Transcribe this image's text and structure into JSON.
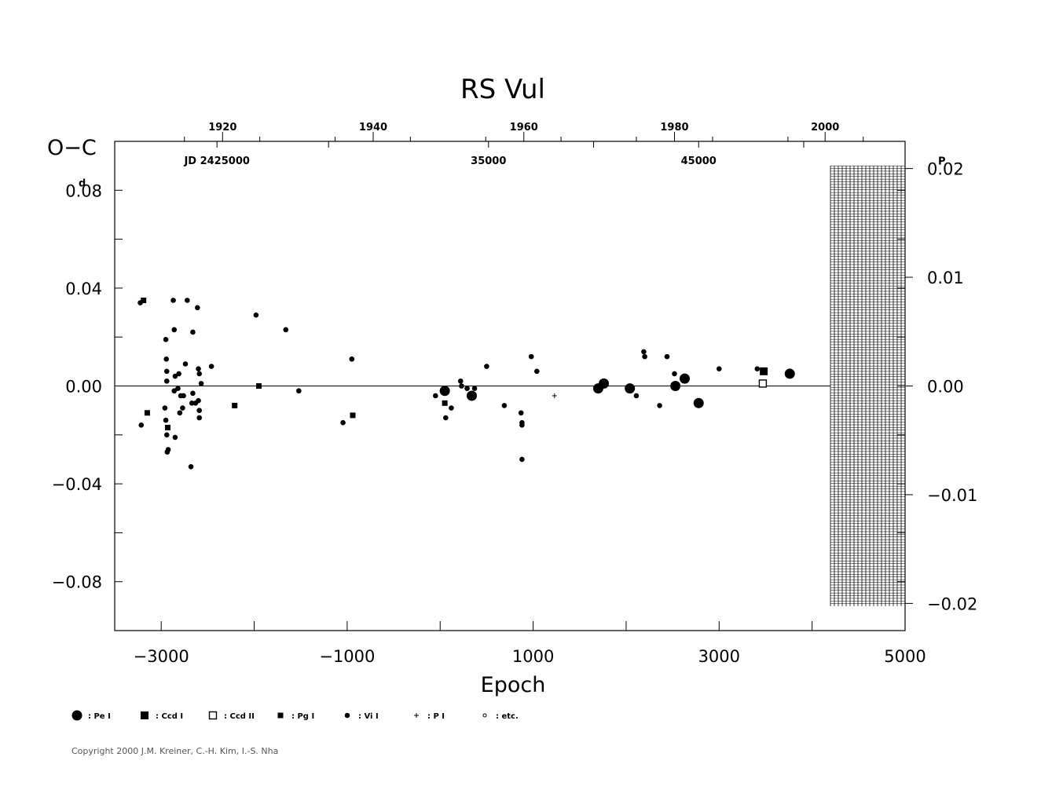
{
  "chart_data": {
    "type": "scatter",
    "title": "RS  Vul",
    "xlabel": "Epoch",
    "ylabel": "O−C",
    "ylabel_unit": "d",
    "right_unit": "P",
    "xlim": [
      -3500,
      5000
    ],
    "ylim": [
      -0.1,
      0.1
    ],
    "right_ylim": [
      -0.0225,
      0.0225
    ],
    "grid": false,
    "x_ticks": [
      "−3000",
      "−1000",
      "1000",
      "3000",
      "5000"
    ],
    "x_tick_values": [
      -3000,
      -1000,
      1000,
      3000,
      5000
    ],
    "y_ticks": [
      "0.08",
      "0.04",
      "0.00",
      "−0.04",
      "−0.08"
    ],
    "y_tick_values": [
      0.08,
      0.04,
      0.0,
      -0.04,
      -0.08
    ],
    "right_ticks": [
      "0.02",
      "0.01",
      "0.00",
      "−0.01",
      "−0.02"
    ],
    "right_tick_values": [
      0.02,
      0.01,
      0.0,
      -0.01,
      -0.02
    ],
    "year_ticks": [
      "1920",
      "1940",
      "1960",
      "1980",
      "2000"
    ],
    "year_tick_epochs": [
      -2340,
      -720,
      900,
      2520,
      4140
    ],
    "jd_labels": [
      {
        "text": "JD  2425000",
        "epoch": -2400
      },
      {
        "text": "35000",
        "epoch": 520
      },
      {
        "text": "45000",
        "epoch": 2780
      }
    ],
    "series": [
      {
        "marker": "vis",
        "points": [
          [
            -3225,
            0.034
          ],
          [
            -3215,
            -0.016
          ],
          [
            -2960,
            -0.009
          ],
          [
            -2950,
            0.019
          ],
          [
            -2945,
            0.011
          ],
          [
            -2940,
            0.006
          ],
          [
            -2940,
            0.002
          ],
          [
            -2950,
            -0.014
          ],
          [
            -2940,
            -0.02
          ],
          [
            -2935,
            -0.027
          ],
          [
            -2925,
            -0.026
          ],
          [
            -2870,
            0.035
          ],
          [
            -2860,
            -0.002
          ],
          [
            -2860,
            0.023
          ],
          [
            -2850,
            0.004
          ],
          [
            -2850,
            -0.021
          ],
          [
            -2820,
            -0.001
          ],
          [
            -2810,
            0.005
          ],
          [
            -2800,
            -0.011
          ],
          [
            -2790,
            -0.004
          ],
          [
            -2770,
            -0.009
          ],
          [
            -2760,
            -0.004
          ],
          [
            -2740,
            0.009
          ],
          [
            -2720,
            0.035
          ],
          [
            -2680,
            -0.033
          ],
          [
            -2670,
            -0.007
          ],
          [
            -2660,
            -0.003
          ],
          [
            -2660,
            0.022
          ],
          [
            -2630,
            -0.007
          ],
          [
            -2610,
            0.032
          ],
          [
            -2600,
            0.007
          ],
          [
            -2600,
            -0.006
          ],
          [
            -2590,
            -0.013
          ],
          [
            -2590,
            0.005
          ],
          [
            -2590,
            -0.01
          ],
          [
            -2570,
            0.001
          ],
          [
            -2460,
            0.008
          ],
          [
            -1980,
            0.029
          ],
          [
            -1660,
            0.023
          ],
          [
            -1520,
            -0.002
          ],
          [
            -1045,
            -0.015
          ],
          [
            -950,
            0.011
          ],
          [
            -50,
            -0.004
          ],
          [
            60,
            -0.013
          ],
          [
            120,
            -0.009
          ],
          [
            220,
            0.002
          ],
          [
            230,
            0.0
          ],
          [
            290,
            -0.001
          ],
          [
            370,
            -0.001
          ],
          [
            500,
            0.008
          ],
          [
            690,
            -0.008
          ],
          [
            870,
            -0.011
          ],
          [
            880,
            -0.015
          ],
          [
            880,
            -0.016
          ],
          [
            880,
            -0.03
          ],
          [
            980,
            0.012
          ],
          [
            1040,
            0.006
          ],
          [
            2110,
            -0.004
          ],
          [
            2190,
            0.014
          ],
          [
            2200,
            0.012
          ],
          [
            2360,
            -0.008
          ],
          [
            2440,
            0.012
          ],
          [
            2520,
            0.005
          ],
          [
            3000,
            0.007
          ],
          [
            3410,
            0.007
          ]
        ]
      },
      {
        "marker": "pe",
        "points": [
          [
            50,
            -0.002
          ],
          [
            340,
            -0.004
          ],
          [
            1700,
            -0.001
          ],
          [
            1760,
            0.001
          ],
          [
            2040,
            -0.001
          ],
          [
            2530,
            -0.0
          ],
          [
            2630,
            0.003
          ],
          [
            2780,
            -0.007
          ],
          [
            3760,
            0.005
          ]
        ]
      },
      {
        "marker": "ccd1",
        "points": [
          [
            3480,
            0.006
          ]
        ]
      },
      {
        "marker": "ccd2",
        "points": [
          [
            3470,
            0.001
          ]
        ]
      },
      {
        "marker": "pg",
        "points": [
          [
            -3190,
            0.035
          ],
          [
            -3150,
            -0.011
          ],
          [
            -2930,
            -0.017
          ],
          [
            -2210,
            -0.008
          ],
          [
            -1950,
            0.0
          ],
          [
            -940,
            -0.012
          ],
          [
            50,
            -0.007
          ]
        ]
      },
      {
        "marker": "pp",
        "points": [
          [
            1230,
            -0.004
          ]
        ]
      }
    ]
  },
  "legend": [
    {
      "marker": "pe",
      "label": ": Pe  I"
    },
    {
      "marker": "ccd1",
      "label": ": Ccd  I"
    },
    {
      "marker": "ccd2",
      "label": ": Ccd  II"
    },
    {
      "marker": "pg",
      "label": ": Pg  I"
    },
    {
      "marker": "vis",
      "label": ": Vi  I"
    },
    {
      "marker": "pp",
      "label": ": P  I"
    },
    {
      "marker": "etc",
      "label": ": etc."
    }
  ],
  "copyright": "Copyright 2000 J.M. Kreiner, C.-H. Kim, I.-S. Nha"
}
